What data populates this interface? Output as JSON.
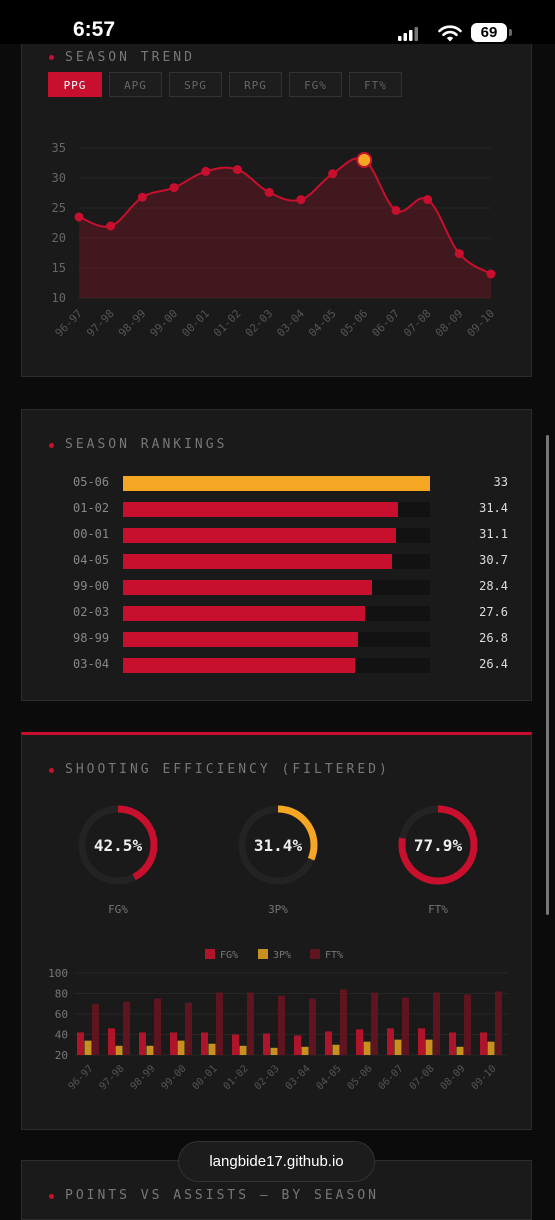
{
  "status": {
    "time": "6:57",
    "battery": "69"
  },
  "trend": {
    "title": "SEASON TREND",
    "tabs": [
      "PPG",
      "APG",
      "SPG",
      "RPG",
      "FG%",
      "FT%"
    ],
    "active_tab": "PPG",
    "accent": "#c8102e",
    "highlight": "#f5a623"
  },
  "rankings": {
    "title": "SEASON RANKINGS",
    "rows": [
      {
        "season": "05-06",
        "value": "33"
      },
      {
        "season": "01-02",
        "value": "31.4"
      },
      {
        "season": "00-01",
        "value": "31.1"
      },
      {
        "season": "04-05",
        "value": "30.7"
      },
      {
        "season": "99-00",
        "value": "28.4"
      },
      {
        "season": "02-03",
        "value": "27.6"
      },
      {
        "season": "98-99",
        "value": "26.8"
      },
      {
        "season": "03-04",
        "value": "26.4"
      }
    ]
  },
  "shooting": {
    "title": "SHOOTING EFFICIENCY (FILTERED)",
    "donuts": [
      {
        "value": "42.5%",
        "label": "FG%",
        "pct": 42.5,
        "color": "#c8102e"
      },
      {
        "value": "31.4%",
        "label": "3P%",
        "pct": 31.4,
        "color": "#f5a623"
      },
      {
        "value": "77.9%",
        "label": "FT%",
        "pct": 77.9,
        "color": "#c8102e"
      }
    ],
    "legend": [
      "FG%",
      "3P%",
      "FT%"
    ],
    "colors": [
      "#b0142a",
      "#c8901e",
      "#5e1520"
    ]
  },
  "next_section": {
    "title": "POINTS VS ASSISTS — BY SEASON"
  },
  "url": "langbide17.github.io",
  "chart_data": [
    {
      "type": "area",
      "title": "SEASON TREND",
      "x": [
        "96-97",
        "97-98",
        "98-99",
        "99-00",
        "00-01",
        "01-02",
        "02-03",
        "03-04",
        "04-05",
        "05-06",
        "06-07",
        "07-08",
        "08-09",
        "09-10"
      ],
      "series": [
        {
          "name": "PPG",
          "values": [
            23.5,
            22.0,
            26.8,
            28.4,
            31.1,
            31.4,
            27.6,
            26.4,
            30.7,
            33.0,
            24.6,
            26.4,
            17.4,
            14.0
          ]
        }
      ],
      "ylim": [
        10,
        35
      ],
      "yticks": [
        10,
        15,
        20,
        25,
        30,
        35
      ],
      "highlight": "05-06"
    },
    {
      "type": "bar",
      "title": "SEASON RANKINGS",
      "categories": [
        "05-06",
        "01-02",
        "00-01",
        "04-05",
        "99-00",
        "02-03",
        "98-99",
        "03-04"
      ],
      "values": [
        33,
        31.4,
        31.1,
        30.7,
        28.4,
        27.6,
        26.8,
        26.4
      ],
      "xlim": [
        0,
        35
      ]
    },
    {
      "type": "bar",
      "x": [
        "96-97",
        "97-98",
        "98-99",
        "99-00",
        "00-01",
        "01-02",
        "02-03",
        "03-04",
        "04-05",
        "05-06",
        "06-07",
        "07-08",
        "08-09",
        "09-10"
      ],
      "series": [
        {
          "name": "FG%",
          "values": [
            42,
            46,
            42,
            42,
            42,
            40,
            41,
            39,
            43,
            45,
            46,
            46,
            42,
            42
          ]
        },
        {
          "name": "3P%",
          "values": [
            34,
            29,
            29,
            34,
            31,
            29,
            27,
            28,
            30,
            33,
            35,
            35,
            28,
            33
          ]
        },
        {
          "name": "FT%",
          "values": [
            70,
            72,
            75,
            71,
            81,
            81,
            78,
            75,
            84,
            81,
            76,
            81,
            79,
            82
          ]
        }
      ],
      "ylim": [
        20,
        100
      ],
      "yticks": [
        20,
        40,
        60,
        80,
        100
      ]
    }
  ]
}
